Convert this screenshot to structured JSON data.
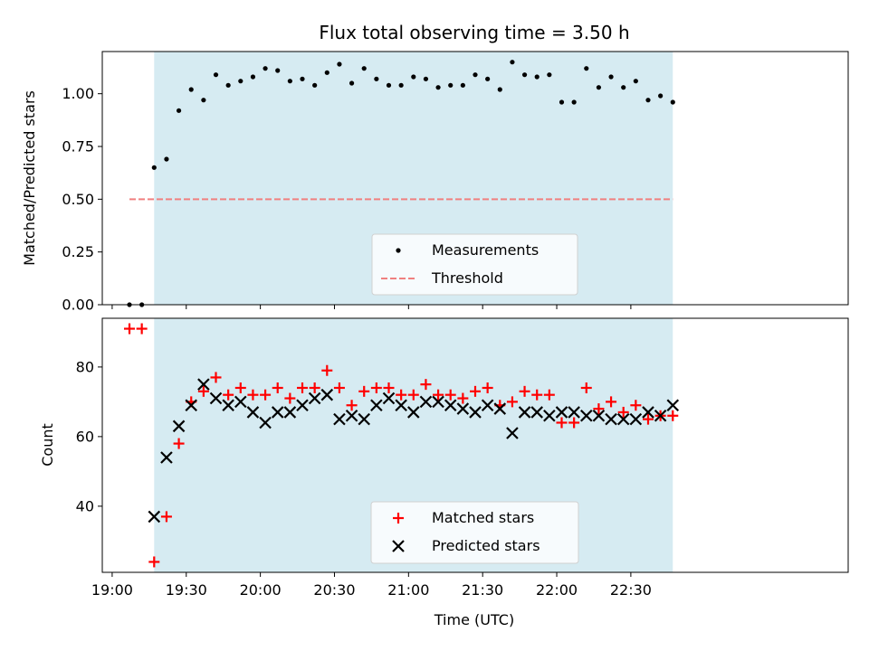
{
  "chart_data": [
    {
      "type": "scatter",
      "title": "Flux total observing time = 3.50 h",
      "ylabel": "Matched/Predicted stars",
      "xlabel": "",
      "xlim": [
        "18:56",
        "23:58"
      ],
      "ylim": [
        0,
        1.2
      ],
      "yticks": [
        "0.00",
        "0.25",
        "0.50",
        "0.75",
        "1.00"
      ],
      "grid": false,
      "legend_position": "lower-center",
      "observing_window": [
        "19:17",
        "22:47"
      ],
      "series": [
        {
          "name": "Measurements",
          "marker": "dot",
          "color": "#000000",
          "x": [
            "19:07",
            "19:12",
            "19:17",
            "19:22",
            "19:27",
            "19:32",
            "19:37",
            "19:42",
            "19:47",
            "19:52",
            "19:57",
            "20:02",
            "20:07",
            "20:12",
            "20:17",
            "20:22",
            "20:27",
            "20:32",
            "20:37",
            "20:42",
            "20:47",
            "20:52",
            "20:57",
            "21:02",
            "21:07",
            "21:12",
            "21:17",
            "21:22",
            "21:27",
            "21:32",
            "21:37",
            "21:42",
            "21:47",
            "21:52",
            "21:57",
            "22:02",
            "22:07",
            "22:12",
            "22:17",
            "22:22",
            "22:27",
            "22:32",
            "22:37",
            "22:42",
            "22:47"
          ],
          "y": [
            0.0,
            0.0,
            0.65,
            0.69,
            0.92,
            1.02,
            0.97,
            1.09,
            1.04,
            1.06,
            1.08,
            1.12,
            1.11,
            1.06,
            1.07,
            1.04,
            1.1,
            1.14,
            1.05,
            1.12,
            1.07,
            1.04,
            1.04,
            1.08,
            1.07,
            1.03,
            1.04,
            1.04,
            1.09,
            1.07,
            1.02,
            1.15,
            1.09,
            1.08,
            1.09,
            0.96,
            0.96,
            1.12,
            1.03,
            1.08,
            1.03,
            1.06,
            0.97,
            0.99,
            0.96
          ]
        },
        {
          "name": "Threshold",
          "marker": "dashed-line",
          "color": "#f08080",
          "x": [
            "19:07",
            "22:47"
          ],
          "y": [
            0.5,
            0.5
          ]
        }
      ]
    },
    {
      "type": "scatter",
      "title": "",
      "ylabel": "Count",
      "xlabel": "Time (UTC)",
      "xlim": [
        "18:56",
        "23:58"
      ],
      "xticks": [
        "19:00",
        "19:30",
        "20:00",
        "20:30",
        "21:00",
        "21:30",
        "22:00",
        "22:30"
      ],
      "ylim": [
        21,
        94
      ],
      "yticks": [
        "40",
        "60",
        "80"
      ],
      "grid": false,
      "legend_position": "lower-center",
      "observing_window": [
        "19:17",
        "22:47"
      ],
      "series": [
        {
          "name": "Matched stars",
          "marker": "plus",
          "color": "#ff0000",
          "x": [
            "19:07",
            "19:12",
            "19:17",
            "19:22",
            "19:27",
            "19:32",
            "19:37",
            "19:42",
            "19:47",
            "19:52",
            "19:57",
            "20:02",
            "20:07",
            "20:12",
            "20:17",
            "20:22",
            "20:27",
            "20:32",
            "20:37",
            "20:42",
            "20:47",
            "20:52",
            "20:57",
            "21:02",
            "21:07",
            "21:12",
            "21:17",
            "21:22",
            "21:27",
            "21:32",
            "21:37",
            "21:42",
            "21:47",
            "21:52",
            "21:57",
            "22:02",
            "22:07",
            "22:12",
            "22:17",
            "22:22",
            "22:27",
            "22:32",
            "22:37",
            "22:42",
            "22:47"
          ],
          "y": [
            91,
            91,
            24,
            37,
            58,
            70,
            73,
            77,
            72,
            74,
            72,
            72,
            74,
            71,
            74,
            74,
            79,
            74,
            69,
            73,
            74,
            74,
            72,
            72,
            75,
            72,
            72,
            71,
            73,
            74,
            69,
            70,
            73,
            72,
            72,
            64,
            64,
            74,
            68,
            70,
            67,
            69,
            65,
            66,
            66
          ]
        },
        {
          "name": "Predicted stars",
          "marker": "x",
          "color": "#000000",
          "x": [
            "19:17",
            "19:22",
            "19:27",
            "19:32",
            "19:37",
            "19:42",
            "19:47",
            "19:52",
            "19:57",
            "20:02",
            "20:07",
            "20:12",
            "20:17",
            "20:22",
            "20:27",
            "20:32",
            "20:37",
            "20:42",
            "20:47",
            "20:52",
            "20:57",
            "21:02",
            "21:07",
            "21:12",
            "21:17",
            "21:22",
            "21:27",
            "21:32",
            "21:37",
            "21:42",
            "21:47",
            "21:52",
            "21:57",
            "22:02",
            "22:07",
            "22:12",
            "22:17",
            "22:22",
            "22:27",
            "22:32",
            "22:37",
            "22:42",
            "22:47"
          ],
          "y": [
            37,
            54,
            63,
            69,
            75,
            71,
            69,
            70,
            67,
            64,
            67,
            67,
            69,
            71,
            72,
            65,
            66,
            65,
            69,
            71,
            69,
            67,
            70,
            70,
            69,
            68,
            67,
            69,
            68,
            61,
            67,
            67,
            66,
            67,
            67,
            66,
            66,
            65,
            65,
            65,
            67,
            66,
            69
          ]
        }
      ]
    }
  ]
}
